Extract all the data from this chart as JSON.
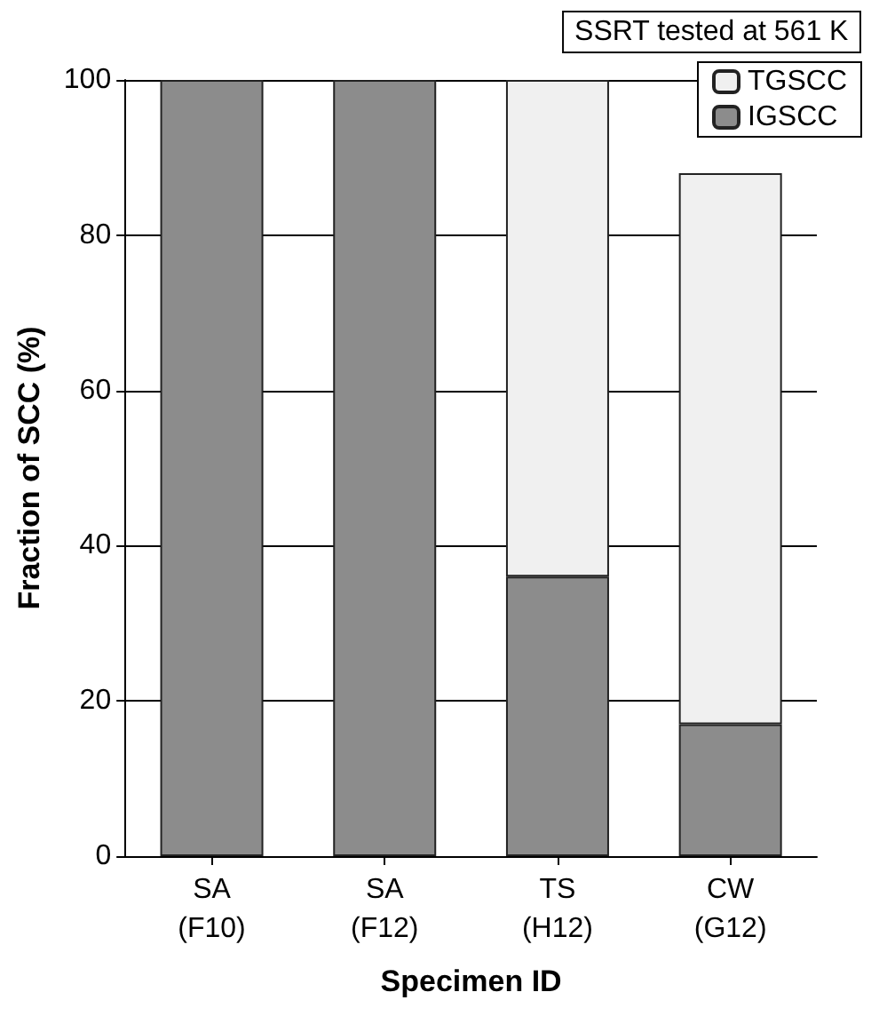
{
  "chart_data": {
    "type": "bar",
    "stacked": true,
    "xlabel": "Specimen ID",
    "ylabel": "Fraction of SCC (%)",
    "legend_title": "SSRT tested at 561 K",
    "categories": [
      "SA\n(F10)",
      "SA\n(F12)",
      "TS\n(H12)",
      "CW\n(G12)"
    ],
    "series": [
      {
        "name": "IGSCC",
        "color": "#8c8c8c",
        "values": [
          100,
          100,
          36,
          17
        ]
      },
      {
        "name": "TGSCC",
        "color": "#f0f0f0",
        "values": [
          0,
          0,
          64,
          71
        ]
      }
    ],
    "ylim": [
      0,
      100
    ],
    "yticks": [
      0,
      20,
      40,
      60,
      80,
      100
    ],
    "grid": "y",
    "legend": "top right"
  }
}
